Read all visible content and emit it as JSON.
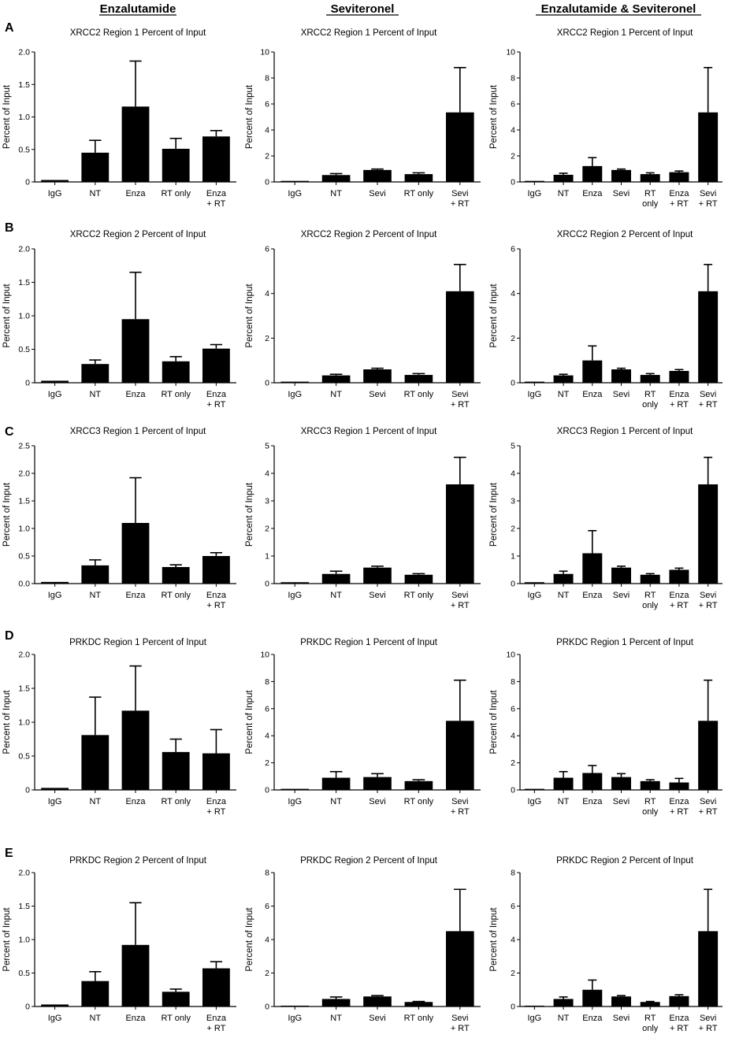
{
  "columns": [
    "Enzalutamide",
    "Seviteronel",
    "Enzalutamide & Seviteronel"
  ],
  "row_labels": [
    "A",
    "B",
    "C",
    "D",
    "E"
  ],
  "chart_data": [
    {
      "type": "bar",
      "title": "XRCC2 Region 1 Percent of Input",
      "ylabel": "Percent of Input",
      "ylim": [
        0,
        2.0
      ],
      "yticks": [
        "0",
        "0.5",
        "1.0",
        "1.5",
        "2.0"
      ],
      "categories": [
        "IgG",
        "NT",
        "Enza",
        "RT only",
        "Enza\n+ RT"
      ],
      "values": [
        0.03,
        0.45,
        1.16,
        0.51,
        0.7
      ],
      "errors": [
        0.0,
        0.19,
        0.7,
        0.16,
        0.09
      ]
    },
    {
      "type": "bar",
      "title": "XRCC2 Region 1 Percent of Input",
      "ylabel": "Percent of Input",
      "ylim": [
        0,
        10
      ],
      "yticks": [
        "0",
        "2",
        "4",
        "6",
        "8",
        "10"
      ],
      "categories": [
        "IgG",
        "NT",
        "Sevi",
        "RT only",
        "Sevi\n+ RT"
      ],
      "values": [
        0.08,
        0.53,
        0.92,
        0.6,
        5.35
      ],
      "errors": [
        0.0,
        0.11,
        0.07,
        0.1,
        3.45
      ]
    },
    {
      "type": "bar",
      "title": "XRCC2 Region 1 Percent of Input",
      "ylabel": "Percent of Input",
      "ylim": [
        0,
        10
      ],
      "yticks": [
        "0",
        "2",
        "4",
        "6",
        "8",
        "10"
      ],
      "categories": [
        "IgG",
        "NT",
        "Enza",
        "Sevi",
        "RT\nonly",
        "Enza\n+ RT",
        "Sevi\n+ RT"
      ],
      "values": [
        0.08,
        0.55,
        1.22,
        0.92,
        0.6,
        0.75,
        5.35
      ],
      "errors": [
        0.0,
        0.12,
        0.65,
        0.07,
        0.1,
        0.09,
        3.45
      ]
    },
    {
      "type": "bar",
      "title": "XRCC2 Region 2 Percent of Input",
      "ylabel": "Percent of Input",
      "ylim": [
        0,
        2.0
      ],
      "yticks": [
        "0",
        "0.5",
        "1.0",
        "1.5",
        "2.0"
      ],
      "categories": [
        "IgG",
        "NT",
        "Enza",
        "RT only",
        "Enza\n+ RT"
      ],
      "values": [
        0.03,
        0.28,
        0.95,
        0.32,
        0.51
      ],
      "errors": [
        0.0,
        0.06,
        0.7,
        0.07,
        0.06
      ]
    },
    {
      "type": "bar",
      "title": "XRCC2 Region 2 Percent of Input",
      "ylabel": "Percent of Input",
      "ylim": [
        0,
        6
      ],
      "yticks": [
        "0",
        "2",
        "4",
        "6"
      ],
      "categories": [
        "IgG",
        "NT",
        "Sevi",
        "RT only",
        "Sevi\n+ RT"
      ],
      "values": [
        0.05,
        0.33,
        0.6,
        0.35,
        4.1
      ],
      "errors": [
        0.0,
        0.05,
        0.05,
        0.06,
        1.2
      ]
    },
    {
      "type": "bar",
      "title": "XRCC2 Region 2 Percent of Input",
      "ylabel": "Percent of Input",
      "ylim": [
        0,
        6
      ],
      "yticks": [
        "0",
        "2",
        "4",
        "6"
      ],
      "categories": [
        "IgG",
        "NT",
        "Enza",
        "Sevi",
        "RT\nonly",
        "Enza\n+ RT",
        "Sevi\n+ RT"
      ],
      "values": [
        0.05,
        0.33,
        1.0,
        0.6,
        0.35,
        0.53,
        4.1
      ],
      "errors": [
        0.0,
        0.05,
        0.65,
        0.05,
        0.06,
        0.06,
        1.2
      ]
    },
    {
      "type": "bar",
      "title": "XRCC3 Region 1 Percent of Input",
      "ylabel": "Percent of Input",
      "ylim": [
        0,
        2.5
      ],
      "yticks": [
        "0.0",
        "0.5",
        "1.0",
        "1.5",
        "2.0",
        "2.5"
      ],
      "categories": [
        "IgG",
        "NT",
        "Enza",
        "RT only",
        "Enza\n+ RT"
      ],
      "values": [
        0.03,
        0.33,
        1.1,
        0.3,
        0.5
      ],
      "errors": [
        0.0,
        0.1,
        0.82,
        0.04,
        0.06
      ]
    },
    {
      "type": "bar",
      "title": "XRCC3 Region 1 Percent of Input",
      "ylabel": "Percent of Input",
      "ylim": [
        0,
        5
      ],
      "yticks": [
        "0",
        "1",
        "2",
        "3",
        "4",
        "5"
      ],
      "categories": [
        "IgG",
        "NT",
        "Sevi",
        "RT only",
        "Sevi\n+ RT"
      ],
      "values": [
        0.05,
        0.35,
        0.58,
        0.32,
        3.6
      ],
      "errors": [
        0.0,
        0.1,
        0.05,
        0.04,
        0.98
      ]
    },
    {
      "type": "bar",
      "title": "XRCC3 Region 1 Percent of Input",
      "ylabel": "Percent of Input",
      "ylim": [
        0,
        5
      ],
      "yticks": [
        "0",
        "1",
        "2",
        "3",
        "4",
        "5"
      ],
      "categories": [
        "IgG",
        "NT",
        "Enza",
        "Sevi",
        "RT\nonly",
        "Enza\n+ RT",
        "Sevi\n+ RT"
      ],
      "values": [
        0.05,
        0.35,
        1.1,
        0.58,
        0.32,
        0.5,
        3.6
      ],
      "errors": [
        0.0,
        0.1,
        0.82,
        0.05,
        0.04,
        0.06,
        0.98
      ]
    },
    {
      "type": "bar",
      "title": "PRKDC Region 1 Percent of Input",
      "ylabel": "Percent of Input",
      "ylim": [
        0,
        2.0
      ],
      "yticks": [
        "0",
        "0.5",
        "1.0",
        "1.5",
        "2.0"
      ],
      "categories": [
        "IgG",
        "NT",
        "Enza",
        "RT only",
        "Enza\n+ RT"
      ],
      "values": [
        0.03,
        0.81,
        1.17,
        0.56,
        0.54
      ],
      "errors": [
        0.0,
        0.56,
        0.66,
        0.19,
        0.35
      ]
    },
    {
      "type": "bar",
      "title": "PRKDC Region 1 Percent of Input",
      "ylabel": "Percent of Input",
      "ylim": [
        0,
        10
      ],
      "yticks": [
        "0",
        "2",
        "4",
        "6",
        "8",
        "10"
      ],
      "categories": [
        "IgG",
        "NT",
        "Sevi",
        "RT only",
        "Sevi\n+ RT"
      ],
      "values": [
        0.08,
        0.9,
        0.95,
        0.65,
        5.1
      ],
      "errors": [
        0.0,
        0.45,
        0.25,
        0.1,
        3.0
      ]
    },
    {
      "type": "bar",
      "title": "PRKDC Region 1 Percent of Input",
      "ylabel": "Percent of Input",
      "ylim": [
        0,
        10
      ],
      "yticks": [
        "0",
        "2",
        "4",
        "6",
        "8",
        "10"
      ],
      "categories": [
        "IgG",
        "NT",
        "Enza",
        "Sevi",
        "RT\nonly",
        "Enza\n+ RT",
        "Sevi\n+ RT"
      ],
      "values": [
        0.08,
        0.9,
        1.25,
        0.95,
        0.65,
        0.55,
        5.1
      ],
      "errors": [
        0.0,
        0.45,
        0.55,
        0.25,
        0.1,
        0.3,
        3.0
      ]
    },
    {
      "type": "bar",
      "title": "PRKDC Region 2 Percent of Input",
      "ylabel": "Percent of Input",
      "ylim": [
        0,
        2.0
      ],
      "yticks": [
        "0",
        "0.5",
        "1.0",
        "1.5",
        "2.0"
      ],
      "categories": [
        "IgG",
        "NT",
        "Enza",
        "RT only",
        "Enza\n+ RT"
      ],
      "values": [
        0.03,
        0.38,
        0.92,
        0.22,
        0.57
      ],
      "errors": [
        0.0,
        0.14,
        0.63,
        0.04,
        0.1
      ]
    },
    {
      "type": "bar",
      "title": "PRKDC Region 2 Percent of Input",
      "ylabel": "Percent of Input",
      "ylim": [
        0,
        8
      ],
      "yticks": [
        "0",
        "2",
        "4",
        "6",
        "8"
      ],
      "categories": [
        "IgG",
        "NT",
        "Sevi",
        "RT only",
        "Sevi\n+ RT"
      ],
      "values": [
        0.05,
        0.45,
        0.6,
        0.27,
        4.5
      ],
      "errors": [
        0.0,
        0.12,
        0.05,
        0.03,
        2.5
      ]
    },
    {
      "type": "bar",
      "title": "PRKDC Region 2 Percent of Input",
      "ylabel": "Percent of Input",
      "ylim": [
        0,
        8
      ],
      "yticks": [
        "0",
        "2",
        "4",
        "6",
        "8"
      ],
      "categories": [
        "IgG",
        "NT",
        "Enza",
        "Sevi",
        "RT\nonly",
        "Enza\n+ RT",
        "Sevi\n+ RT"
      ],
      "values": [
        0.05,
        0.45,
        1.0,
        0.6,
        0.27,
        0.62,
        4.5
      ],
      "errors": [
        0.0,
        0.12,
        0.58,
        0.05,
        0.03,
        0.08,
        2.5
      ]
    }
  ]
}
